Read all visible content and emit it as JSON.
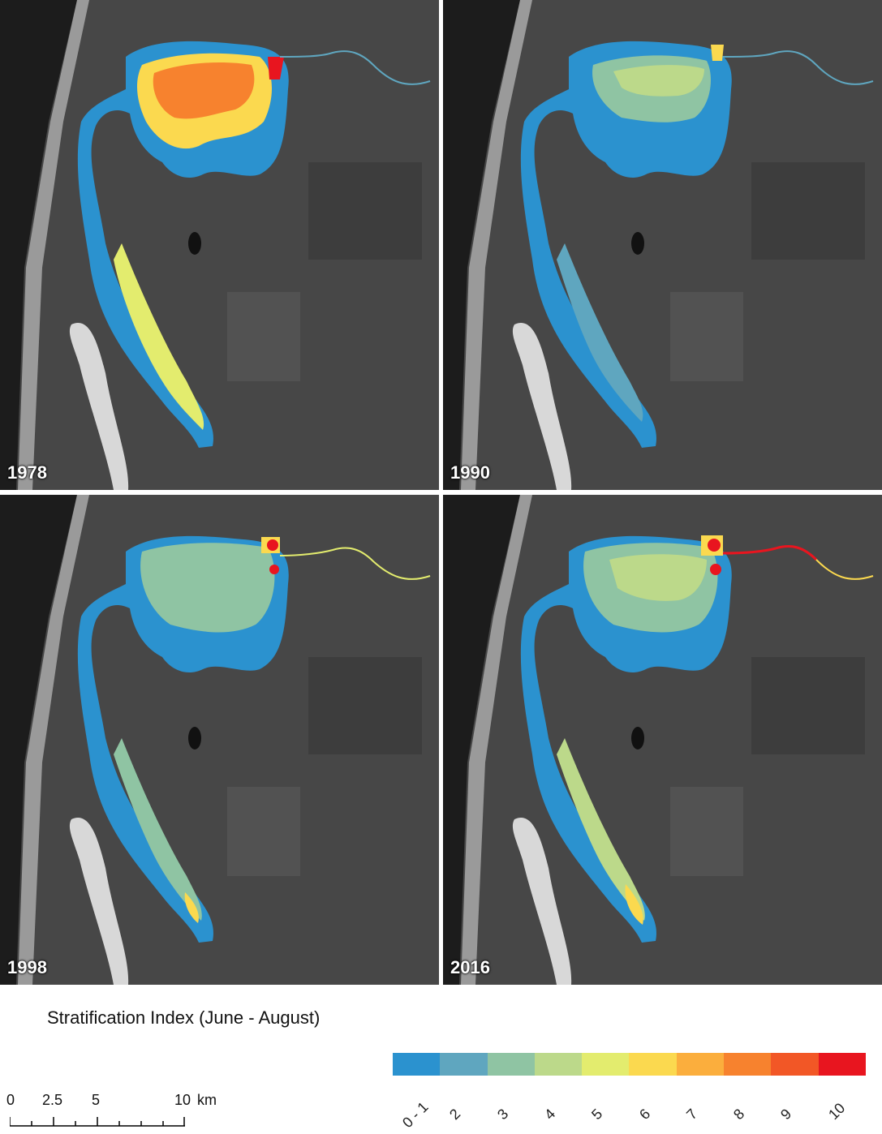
{
  "panels": [
    {
      "year": "1978"
    },
    {
      "year": "1990"
    },
    {
      "year": "1998"
    },
    {
      "year": "2016"
    }
  ],
  "legend": {
    "title": "Stratification Index (June - August)",
    "classes": [
      "0 - 1",
      "2",
      "3",
      "4",
      "5",
      "6",
      "7",
      "8",
      "9",
      "10"
    ],
    "colors": [
      "#2b92cf",
      "#5fa6bf",
      "#8fc4a3",
      "#bcd98a",
      "#e3ec6e",
      "#fbd94f",
      "#fbae3d",
      "#f7822e",
      "#f25726",
      "#e8151f"
    ]
  },
  "scale": {
    "labels": [
      "0",
      "2.5",
      "5",
      "10"
    ],
    "unit": "km"
  }
}
